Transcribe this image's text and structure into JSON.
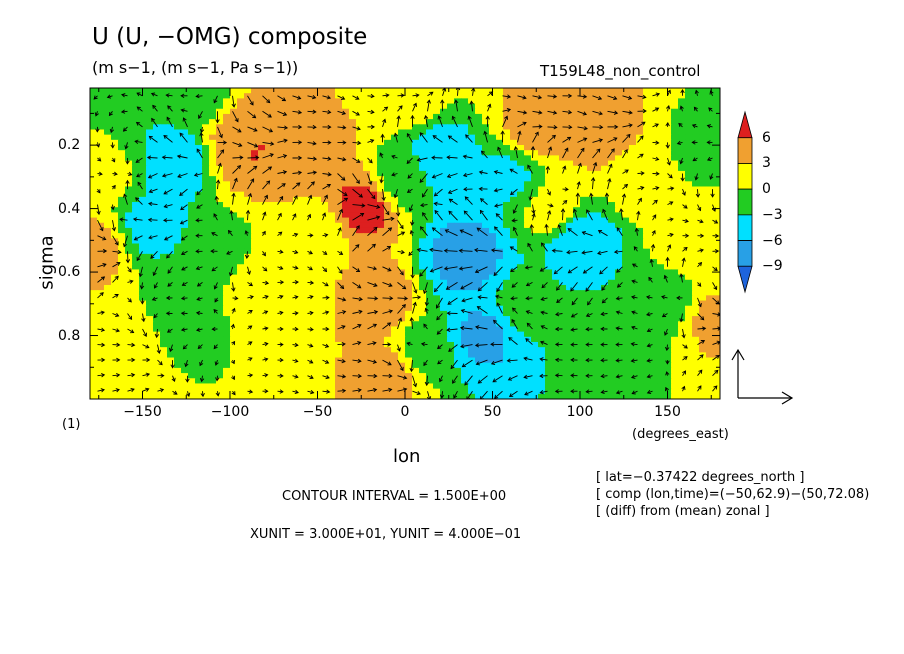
{
  "chart_data": {
    "type": "heatmap",
    "title": "U (U, −OMG) composite",
    "units": "(m s−1, (m s−1, Pa s−1))",
    "run_name": "T159L48_non_control",
    "panel_label": "(1)",
    "xlabel": "lon",
    "x_unit": "(degrees_east)",
    "ylabel": "sigma",
    "xlim": [
      -180,
      180
    ],
    "ylim": [
      0.02,
      1.0
    ],
    "y_inverted": true,
    "x_ticks": [
      -150,
      -100,
      -50,
      0,
      50,
      100,
      150
    ],
    "x_tick_labels": [
      "−150",
      "−100",
      "−50",
      "0",
      "50",
      "100",
      "150"
    ],
    "y_ticks": [
      0.2,
      0.4,
      0.6,
      0.8
    ],
    "y_tick_labels": [
      "0.2",
      "0.4",
      "0.6",
      "0.8"
    ],
    "contour_interval_text": "CONTOUR INTERVAL = 1.500E+00",
    "vector_units_text": "XUNIT = 3.000E+01, YUNIT = 4.000E−01",
    "info_lines": [
      "[ lat=−0.37422 degrees_north ]",
      "[ comp (lon,time)=(−50,62.9)−(50,72.08)",
      "[ (diff) from (mean) zonal ]"
    ],
    "colorbar": {
      "labels": [
        "6",
        "3",
        "0",
        "−3",
        "−6",
        "−9"
      ],
      "levels": [
        6,
        3,
        0,
        -3,
        -6,
        -9
      ],
      "colors": {
        "above_6": "#dd1f1f",
        "3_to_6": "#f0a030",
        "0_to_3": "#ffff00",
        "m3_to_0": "#22cc22",
        "m6_to_m3": "#00e0ff",
        "m9_to_m6": "#28a0e6",
        "below_m9": "#1e64dc"
      }
    },
    "field_sketch": [
      {
        "lon": -178,
        "sigma": 0.52,
        "value": 4.0
      },
      {
        "lon": -170,
        "sigma": 0.3,
        "value": 0.5
      },
      {
        "lon": -160,
        "sigma": 0.85,
        "value": 2.5
      },
      {
        "lon": -145,
        "sigma": 0.45,
        "value": -4.0
      },
      {
        "lon": -130,
        "sigma": 0.25,
        "value": -5.0
      },
      {
        "lon": -125,
        "sigma": 0.75,
        "value": -1.5
      },
      {
        "lon": -110,
        "sigma": 0.55,
        "value": -2.0
      },
      {
        "lon": -95,
        "sigma": 0.18,
        "value": 4.0
      },
      {
        "lon": -90,
        "sigma": 0.2,
        "value": 6.5
      },
      {
        "lon": -85,
        "sigma": 0.65,
        "value": 1.5
      },
      {
        "lon": -70,
        "sigma": 0.75,
        "value": 1.2
      },
      {
        "lon": -62,
        "sigma": 0.25,
        "value": 4.0
      },
      {
        "lon": -50,
        "sigma": 0.48,
        "value": 1.0
      },
      {
        "lon": -45,
        "sigma": 0.2,
        "value": 3.5
      },
      {
        "lon": -25,
        "sigma": 0.4,
        "value": 7.0
      },
      {
        "lon": -15,
        "sigma": 0.7,
        "value": 5.0
      },
      {
        "lon": -8,
        "sigma": 0.92,
        "value": 4.5
      },
      {
        "lon": 0,
        "sigma": 0.3,
        "value": -1.5
      },
      {
        "lon": 10,
        "sigma": 0.85,
        "value": -1.5
      },
      {
        "lon": 20,
        "sigma": 0.25,
        "value": -5.5
      },
      {
        "lon": 35,
        "sigma": 0.55,
        "value": -7.5
      },
      {
        "lon": 45,
        "sigma": 0.8,
        "value": -6.5
      },
      {
        "lon": 60,
        "sigma": 0.3,
        "value": -3.5
      },
      {
        "lon": 68,
        "sigma": 0.7,
        "value": -2.0
      },
      {
        "lon": 75,
        "sigma": 0.15,
        "value": 4.5
      },
      {
        "lon": 85,
        "sigma": 0.4,
        "value": 1.5
      },
      {
        "lon": 100,
        "sigma": 0.5,
        "value": -5.5
      },
      {
        "lon": 110,
        "sigma": 0.15,
        "value": 5.0
      },
      {
        "lon": 115,
        "sigma": 0.82,
        "value": -2.0
      },
      {
        "lon": 135,
        "sigma": 0.3,
        "value": 2.0
      },
      {
        "lon": 150,
        "sigma": 0.7,
        "value": -1.5
      },
      {
        "lon": 165,
        "sigma": 0.5,
        "value": 1.5
      },
      {
        "lon": 175,
        "sigma": 0.75,
        "value": 3.5
      },
      {
        "lon": 170,
        "sigma": 0.2,
        "value": -1.0
      },
      {
        "lon": 0,
        "sigma": 0.04,
        "value": 2.0
      },
      {
        "lon": 90,
        "sigma": 0.05,
        "value": 4.0
      },
      {
        "lon": -120,
        "sigma": 0.05,
        "value": -2.0
      }
    ]
  }
}
